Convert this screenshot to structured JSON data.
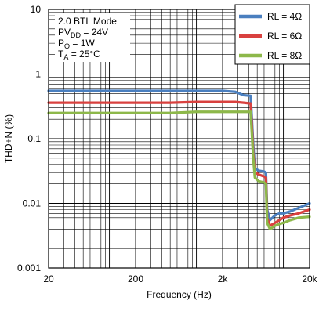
{
  "chart_data": {
    "type": "line",
    "title": "",
    "xlabel": "Frequency (Hz)",
    "ylabel": "THD+N (%)",
    "x_scale": "log",
    "y_scale": "log",
    "xlim": [
      20,
      20000
    ],
    "ylim": [
      0.001,
      10
    ],
    "x_ticks": [
      20,
      200,
      2000,
      20000
    ],
    "x_tick_labels": [
      "20",
      "200",
      "2k",
      "20k"
    ],
    "y_ticks": [
      0.001,
      0.01,
      0.1,
      1,
      10
    ],
    "y_tick_labels": [
      "0.001",
      "0.01",
      "0.1",
      "1",
      "10"
    ],
    "grid": true,
    "legend_position": "top-right",
    "conditions": {
      "mode": "2.0 BTL Mode",
      "pvdd_main": "PV",
      "pvdd_sub": "DD",
      "pvdd_value": " = 24V",
      "po_main": "P",
      "po_sub": "O",
      "po_value": " = 1W",
      "ta_main": "T",
      "ta_sub": "A",
      "ta_value": " = 25°C"
    },
    "series": [
      {
        "name": "RL = 4Ω",
        "color": "#4a7fbf",
        "x": [
          20,
          100,
          500,
          1000,
          2000,
          2800,
          3500,
          4200,
          4500,
          4700,
          5200,
          6000,
          6300,
          6500,
          7000,
          8000,
          9000,
          10000,
          12000,
          15000,
          20000
        ],
        "y": [
          0.55,
          0.55,
          0.55,
          0.55,
          0.55,
          0.53,
          0.47,
          0.46,
          0.08,
          0.035,
          0.032,
          0.031,
          0.03,
          0.008,
          0.0055,
          0.0065,
          0.007,
          0.007,
          0.0075,
          0.0085,
          0.01
        ]
      },
      {
        "name": "RL = 6Ω",
        "color": "#d9413f",
        "x": [
          20,
          100,
          500,
          1000,
          2000,
          2800,
          3500,
          4200,
          4500,
          4700,
          5200,
          6000,
          6300,
          6500,
          7000,
          8000,
          9000,
          10000,
          12000,
          15000,
          20000
        ],
        "y": [
          0.36,
          0.36,
          0.36,
          0.37,
          0.37,
          0.37,
          0.36,
          0.35,
          0.06,
          0.03,
          0.028,
          0.026,
          0.025,
          0.006,
          0.0045,
          0.005,
          0.0055,
          0.006,
          0.0065,
          0.007,
          0.008
        ]
      },
      {
        "name": "RL = 8Ω",
        "color": "#8db84a",
        "x": [
          20,
          100,
          500,
          1000,
          2000,
          2800,
          3500,
          4200,
          4500,
          4700,
          5200,
          6000,
          6300,
          6500,
          7000,
          8000,
          9000,
          10000,
          12000,
          15000,
          20000
        ],
        "y": [
          0.25,
          0.25,
          0.25,
          0.26,
          0.26,
          0.26,
          0.26,
          0.26,
          0.05,
          0.025,
          0.022,
          0.021,
          0.02,
          0.005,
          0.004,
          0.0045,
          0.0048,
          0.005,
          0.0055,
          0.006,
          0.0062
        ]
      }
    ]
  }
}
